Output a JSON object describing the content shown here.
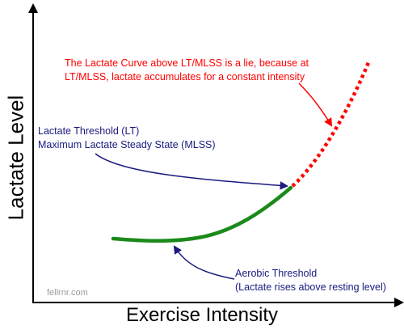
{
  "axes": {
    "y_label": "Lactate Level",
    "x_label": "Exercise Intensity"
  },
  "annotations": {
    "red_note": {
      "line1": "The Lactate Curve above LT/MLSS is a lie, because at",
      "line2": "LT/MLSS, lactate accumulates for a constant intensity"
    },
    "lt_note": {
      "line1": "Lactate Threshold (LT)",
      "line2": "Maximum Lactate Steady State (MLSS)"
    },
    "aerobic_note": {
      "line1": "Aerobic Threshold",
      "line2": "(Lactate rises above resting level)"
    }
  },
  "watermark": "fellrnr.com",
  "colors": {
    "curve_green": "#1a8a1a",
    "curve_red_dotted": "#ff0000",
    "arrow_blue": "#1a1a80",
    "arrow_red": "#ff0000",
    "axis": "#000000",
    "note_red": "#ff0000",
    "note_blue": "#1a1a80"
  }
}
